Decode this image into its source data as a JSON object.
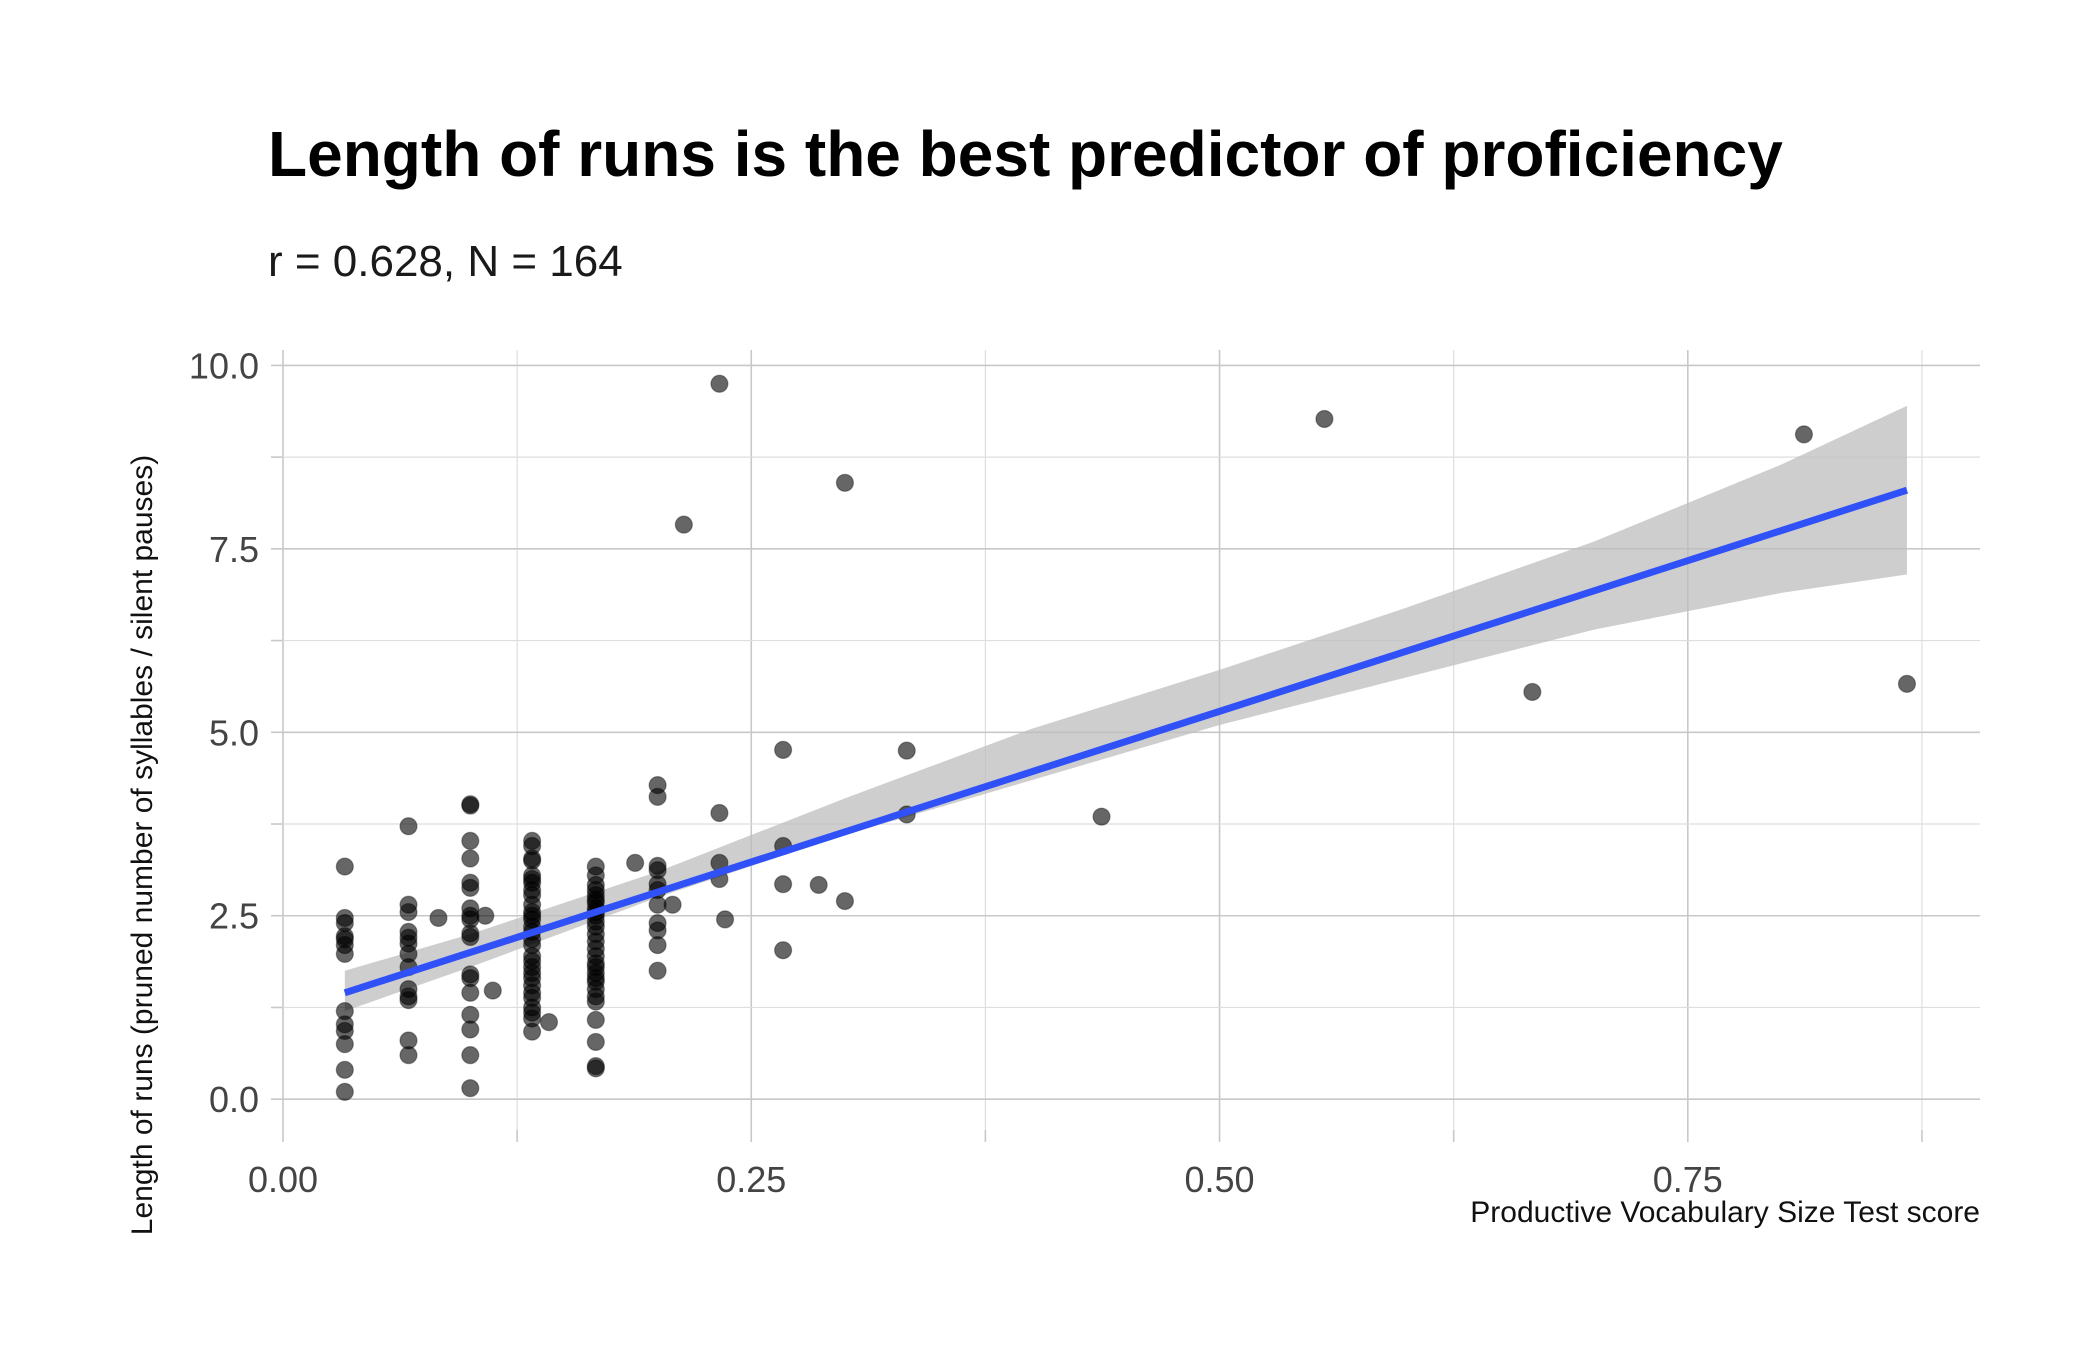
{
  "chart_data": {
    "type": "scatter",
    "title": "Length of runs is the best predictor of proficiency",
    "subtitle": "r = 0.628, N = 164",
    "xlabel": "Productive Vocabulary Size Test score",
    "ylabel": "Length of runs (pruned number of syllables / silent pauses)",
    "xlim": [
      0.0,
      0.906
    ],
    "ylim": [
      -0.42,
      10.21
    ],
    "x_ticks": [
      0.0,
      0.25,
      0.5,
      0.75
    ],
    "x_tick_labels": [
      "0.00",
      "0.25",
      "0.50",
      "0.75"
    ],
    "y_ticks": [
      0.0,
      2.5,
      5.0,
      7.5,
      10.0
    ],
    "y_tick_labels": [
      "0.0",
      "2.5",
      "5.0",
      "7.5",
      "10.0"
    ],
    "grid": true,
    "colors": {
      "points": "#000000",
      "fit_line": "#3050F8",
      "confidence_band": "#BEBEBE"
    },
    "points": [
      [
        0.033,
        3.17
      ],
      [
        0.033,
        2.47
      ],
      [
        0.033,
        2.4
      ],
      [
        0.033,
        2.22
      ],
      [
        0.033,
        2.18
      ],
      [
        0.033,
        2.1
      ],
      [
        0.033,
        1.98
      ],
      [
        0.033,
        1.2
      ],
      [
        0.033,
        1.02
      ],
      [
        0.033,
        0.93
      ],
      [
        0.033,
        0.75
      ],
      [
        0.033,
        0.4
      ],
      [
        0.033,
        0.1
      ],
      [
        0.067,
        3.72
      ],
      [
        0.067,
        2.65
      ],
      [
        0.067,
        2.55
      ],
      [
        0.067,
        2.28
      ],
      [
        0.067,
        2.2
      ],
      [
        0.067,
        2.12
      ],
      [
        0.067,
        1.98
      ],
      [
        0.067,
        1.8
      ],
      [
        0.067,
        1.5
      ],
      [
        0.067,
        1.4
      ],
      [
        0.067,
        1.35
      ],
      [
        0.067,
        0.8
      ],
      [
        0.067,
        0.6
      ],
      [
        0.083,
        2.47
      ],
      [
        0.1,
        4.02
      ],
      [
        0.1,
        4.0
      ],
      [
        0.1,
        3.52
      ],
      [
        0.1,
        3.28
      ],
      [
        0.1,
        2.95
      ],
      [
        0.1,
        2.88
      ],
      [
        0.1,
        2.6
      ],
      [
        0.1,
        2.5
      ],
      [
        0.1,
        2.45
      ],
      [
        0.1,
        2.26
      ],
      [
        0.1,
        2.21
      ],
      [
        0.1,
        1.7
      ],
      [
        0.1,
        1.65
      ],
      [
        0.1,
        1.45
      ],
      [
        0.1,
        1.15
      ],
      [
        0.1,
        0.95
      ],
      [
        0.1,
        0.6
      ],
      [
        0.1,
        0.15
      ],
      [
        0.108,
        2.5
      ],
      [
        0.112,
        1.48
      ],
      [
        0.133,
        3.52
      ],
      [
        0.133,
        3.45
      ],
      [
        0.133,
        3.28
      ],
      [
        0.133,
        3.25
      ],
      [
        0.133,
        3.05
      ],
      [
        0.133,
        3.0
      ],
      [
        0.133,
        2.95
      ],
      [
        0.133,
        2.85
      ],
      [
        0.133,
        2.78
      ],
      [
        0.133,
        2.65
      ],
      [
        0.133,
        2.55
      ],
      [
        0.133,
        2.5
      ],
      [
        0.133,
        2.45
      ],
      [
        0.133,
        2.35
      ],
      [
        0.133,
        2.28
      ],
      [
        0.133,
        2.18
      ],
      [
        0.133,
        2.1
      ],
      [
        0.133,
        1.95
      ],
      [
        0.133,
        1.88
      ],
      [
        0.133,
        1.8
      ],
      [
        0.133,
        1.72
      ],
      [
        0.133,
        1.65
      ],
      [
        0.133,
        1.55
      ],
      [
        0.133,
        1.45
      ],
      [
        0.133,
        1.38
      ],
      [
        0.133,
        1.25
      ],
      [
        0.133,
        1.18
      ],
      [
        0.133,
        1.1
      ],
      [
        0.133,
        0.92
      ],
      [
        0.142,
        1.05
      ],
      [
        0.167,
        3.17
      ],
      [
        0.167,
        3.05
      ],
      [
        0.167,
        2.92
      ],
      [
        0.167,
        2.85
      ],
      [
        0.167,
        2.78
      ],
      [
        0.167,
        2.72
      ],
      [
        0.167,
        2.68
      ],
      [
        0.167,
        2.6
      ],
      [
        0.167,
        2.55
      ],
      [
        0.167,
        2.5
      ],
      [
        0.167,
        2.42
      ],
      [
        0.167,
        2.35
      ],
      [
        0.167,
        2.25
      ],
      [
        0.167,
        2.15
      ],
      [
        0.167,
        2.05
      ],
      [
        0.167,
        1.95
      ],
      [
        0.167,
        1.85
      ],
      [
        0.167,
        1.8
      ],
      [
        0.167,
        1.72
      ],
      [
        0.167,
        1.65
      ],
      [
        0.167,
        1.6
      ],
      [
        0.167,
        1.5
      ],
      [
        0.167,
        1.4
      ],
      [
        0.167,
        1.33
      ],
      [
        0.167,
        1.08
      ],
      [
        0.167,
        0.78
      ],
      [
        0.167,
        0.45
      ],
      [
        0.167,
        0.42
      ],
      [
        0.188,
        3.22
      ],
      [
        0.2,
        4.28
      ],
      [
        0.2,
        4.12
      ],
      [
        0.2,
        3.18
      ],
      [
        0.2,
        3.12
      ],
      [
        0.2,
        2.93
      ],
      [
        0.2,
        2.85
      ],
      [
        0.2,
        2.65
      ],
      [
        0.2,
        2.4
      ],
      [
        0.2,
        2.3
      ],
      [
        0.2,
        2.1
      ],
      [
        0.2,
        1.75
      ],
      [
        0.208,
        2.65
      ],
      [
        0.214,
        7.83
      ],
      [
        0.233,
        9.75
      ],
      [
        0.233,
        3.9
      ],
      [
        0.233,
        3.22
      ],
      [
        0.233,
        3.0
      ],
      [
        0.236,
        2.45
      ],
      [
        0.267,
        4.76
      ],
      [
        0.267,
        3.45
      ],
      [
        0.267,
        2.93
      ],
      [
        0.267,
        2.03
      ],
      [
        0.286,
        2.92
      ],
      [
        0.3,
        8.4
      ],
      [
        0.3,
        2.7
      ],
      [
        0.333,
        4.75
      ],
      [
        0.333,
        3.88
      ],
      [
        0.437,
        3.85
      ],
      [
        0.556,
        9.27
      ],
      [
        0.667,
        5.55
      ],
      [
        0.812,
        9.06
      ],
      [
        0.867,
        5.66
      ]
    ],
    "fit_line": {
      "x": [
        0.033,
        0.867
      ],
      "y": [
        1.45,
        8.3
      ]
    },
    "confidence_band": {
      "x": [
        0.033,
        0.1,
        0.2,
        0.3,
        0.4,
        0.5,
        0.6,
        0.7,
        0.8,
        0.867
      ],
      "lower": [
        1.2,
        1.8,
        2.75,
        3.6,
        4.35,
        5.1,
        5.75,
        6.4,
        6.9,
        7.15
      ],
      "upper": [
        1.75,
        2.25,
        3.1,
        4.1,
        5.05,
        5.85,
        6.7,
        7.6,
        8.65,
        9.45
      ]
    }
  }
}
